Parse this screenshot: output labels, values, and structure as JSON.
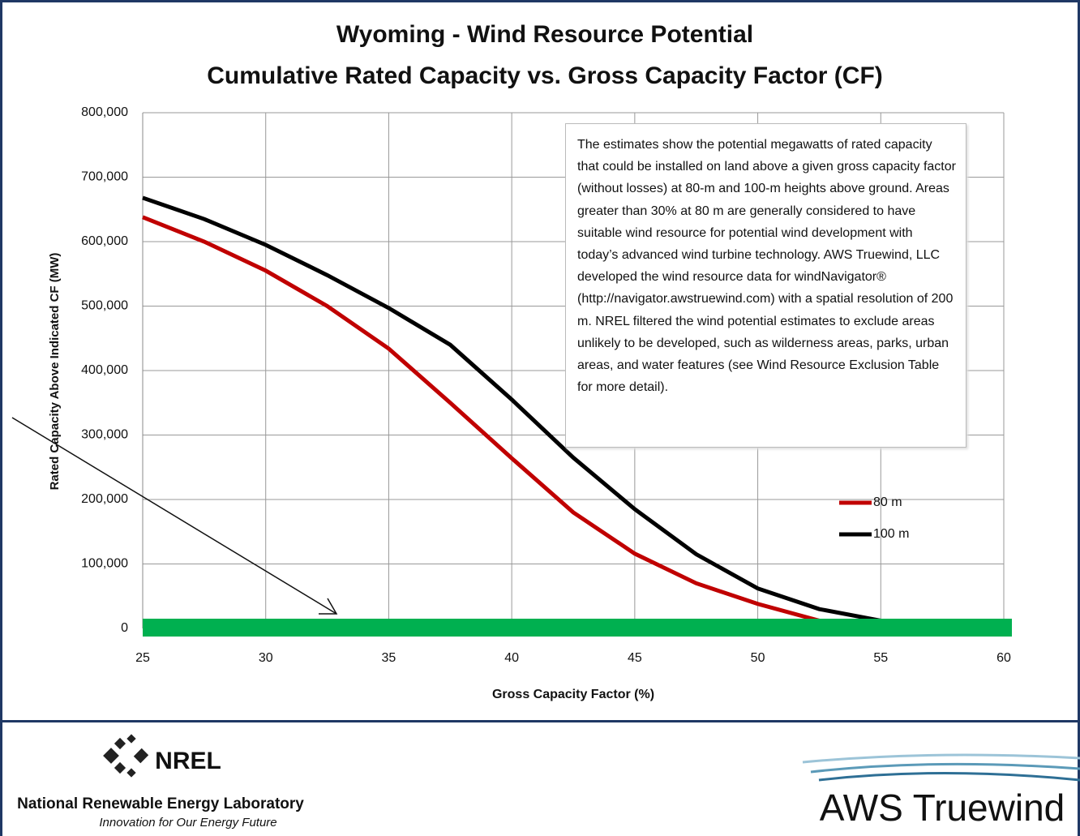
{
  "chart_data": {
    "type": "line",
    "title": "Wyoming - Wind Resource Potential",
    "subtitle": "Cumulative Rated Capacity vs. Gross Capacity Factor (CF)",
    "x_label": "Gross Capacity Factor (%)",
    "y_label": "Rated Capacity Above Indicated CF (MW)",
    "annotation": "The estimates show the potential megawatts of rated capacity that could be installed on land above a given gross capacity factor (without losses) at 80-m and 100-m heights above ground. Areas greater than 30% at 80 m are generally considered to have suitable wind resource for potential wind development with today’s advanced wind turbine technology. AWS Truewind, LLC developed the wind resource data for windNavigator® (http://navigator.awstruewind.com) with a spatial resolution of 200 m. NREL filtered the wind potential estimates to exclude areas unlikely to be developed, such as wilderness areas, parks, urban areas, and water features (see Wind Resource Exclusion Table for more detail).",
    "x": [
      25,
      27.5,
      30,
      32.5,
      35,
      37.5,
      40,
      42.5,
      45,
      47.5,
      50,
      52.5,
      55
    ],
    "series": [
      {
        "name": "80 m",
        "color": "#c00000",
        "values": [
          638000,
          600000,
          555000,
          500000,
          434000,
          350000,
          264000,
          180000,
          116000,
          70000,
          38000,
          12000,
          2000
        ]
      },
      {
        "name": "100 m",
        "color": "#000000",
        "values": [
          668000,
          635000,
          595000,
          548000,
          497000,
          440000,
          355000,
          265000,
          185000,
          115000,
          62000,
          30000,
          12000
        ]
      }
    ],
    "xlim": [
      25,
      60
    ],
    "xticks": [
      25,
      30,
      35,
      40,
      45,
      50,
      55,
      60
    ],
    "ylim": [
      0,
      800000
    ],
    "yticks": [
      0,
      {
        "value": 100000,
        "label": "100,000"
      },
      {
        "value": 200000,
        "label": "200,000"
      },
      {
        "value": 300000,
        "label": "300,000"
      },
      {
        "value": 400000,
        "label": "400,000"
      },
      {
        "value": 500000,
        "label": "500,000"
      },
      {
        "value": 600000,
        "label": "600,000"
      },
      {
        "value": 700000,
        "label": "700,000"
      },
      {
        "value": 800000,
        "label": "800,000"
      }
    ],
    "grid": true,
    "legend": "right"
  },
  "footer": {
    "nrel_logo": "NREL",
    "nrel_name": "National Renewable Energy Laboratory",
    "nrel_tagline": "Innovation for Our Energy Future",
    "aws_logo": "AWS Truewind"
  }
}
